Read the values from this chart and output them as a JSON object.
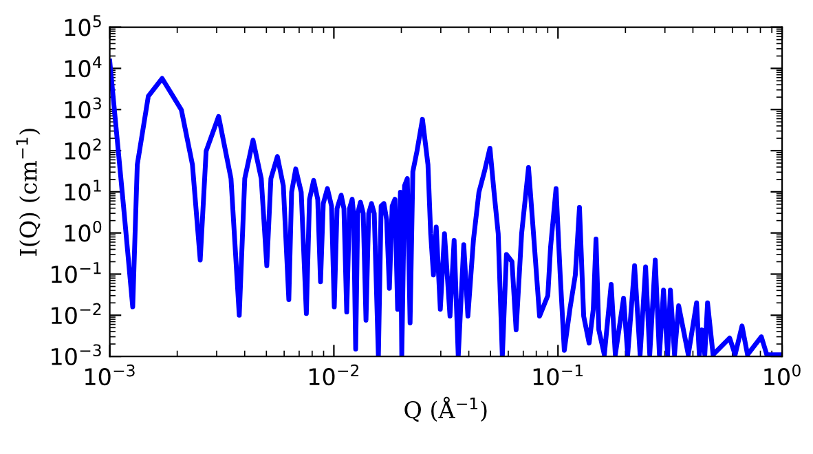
{
  "chart_data": {
    "type": "line",
    "xlabel": "Q (Å$^{−1}$)",
    "ylabel": "I(Q) (cm$^{−1}$)",
    "log": "xy",
    "grid": false,
    "marker": "none",
    "line_style": "solid",
    "xlim": [
      0.001,
      1
    ],
    "ylim": [
      0.001,
      100000
    ],
    "xticks": [
      {
        "value": 0.001,
        "label": "10$^{−3}$"
      },
      {
        "value": 0.01,
        "label": "10$^{−2}$"
      },
      {
        "value": 0.1,
        "label": "10$^{−1}$"
      },
      {
        "value": 1,
        "label": "10$^{0}$"
      }
    ],
    "yticks": [
      {
        "value": 0.001,
        "label": "10$^{−3}$"
      },
      {
        "value": 0.01,
        "label": "10$^{−2}$"
      },
      {
        "value": 0.1,
        "label": "10$^{−1}$"
      },
      {
        "value": 1,
        "label": "10$^{0}$"
      },
      {
        "value": 10,
        "label": "10$^{1}$"
      },
      {
        "value": 100,
        "label": "10$^{2}$"
      },
      {
        "value": 1000,
        "label": "10$^{3}$"
      },
      {
        "value": 10000,
        "label": "10$^{4}$"
      },
      {
        "value": 100000,
        "label": "10$^{5}$"
      }
    ],
    "series": [
      {
        "color": "#0000ff",
        "x": [
          0.001,
          0.001152,
          0.001266,
          0.001327,
          0.001486,
          0.001712,
          0.002087,
          0.002338,
          0.002533,
          0.002692,
          0.00306,
          0.003475,
          0.003783,
          0.004003,
          0.004358,
          0.004742,
          0.00502,
          0.005236,
          0.005598,
          0.00595,
          0.006295,
          0.006477,
          0.006757,
          0.00715,
          0.007537,
          0.007786,
          0.008123,
          0.008472,
          0.008718,
          0.008969,
          0.009357,
          0.009763,
          0.010042,
          0.01033,
          0.01078,
          0.01109,
          0.01141,
          0.01174,
          0.01207,
          0.01224,
          0.01251,
          0.01278,
          0.01314,
          0.01352,
          0.01391,
          0.0143,
          0.01472,
          0.01514,
          0.0158,
          0.01625,
          0.01672,
          0.0172,
          0.01769,
          0.0182,
          0.01873,
          0.01925,
          0.01981,
          0.02009,
          0.02067,
          0.02127,
          0.02188,
          0.02251,
          0.02349,
          0.02485,
          0.02629,
          0.02704,
          0.02782,
          0.02862,
          0.02985,
          0.03116,
          0.03297,
          0.0344,
          0.03589,
          0.03798,
          0.03963,
          0.04194,
          0.04438,
          0.04696,
          0.0497,
          0.05185,
          0.05411,
          0.05645,
          0.05889,
          0.06233,
          0.06504,
          0.06882,
          0.07388,
          0.07816,
          0.08274,
          0.09007,
          0.09266,
          0.09803,
          0.1023,
          0.1067,
          0.113,
          0.1195,
          0.1247,
          0.1302,
          0.1377,
          0.1437,
          0.1478,
          0.1521,
          0.161,
          0.1727,
          0.1802,
          0.1962,
          0.2047,
          0.2197,
          0.2325,
          0.246,
          0.2567,
          0.2716,
          0.2835,
          0.2957,
          0.3085,
          0.3173,
          0.3311,
          0.3455,
          0.3814,
          0.4153,
          0.4272,
          0.4395,
          0.4519,
          0.4649,
          0.492,
          0.5833,
          0.6172,
          0.6625,
          0.701,
          0.8076,
          0.8546,
          1.0
        ],
        "values": [
          15000,
          4.5,
          0.016,
          46,
          2100,
          5700,
          980,
          46,
          0.22,
          98,
          680,
          21,
          0.01,
          21,
          180,
          21,
          0.16,
          21,
          72,
          14,
          0.024,
          9.8,
          36,
          9.8,
          0.011,
          6.6,
          19,
          6.6,
          0.065,
          5.2,
          12,
          4.5,
          0.016,
          3.9,
          8.3,
          3.9,
          0.012,
          3.9,
          6.6,
          3.0,
          0.0015,
          3.0,
          5.6,
          3.0,
          0.0076,
          3.0,
          5.2,
          3.0,
          0.001,
          4.5,
          5.2,
          2.1,
          0.045,
          4.5,
          6.6,
          0.014,
          9.8,
          0.001,
          14,
          21,
          0.0065,
          31,
          98,
          580,
          46,
          0.96,
          0.095,
          1.4,
          0.014,
          0.96,
          0.0095,
          0.66,
          0.001,
          0.52,
          0.0095,
          0.66,
          9.8,
          31,
          115,
          9.8,
          0.96,
          0.001,
          0.3,
          0.2,
          0.0044,
          0.96,
          39,
          0.66,
          0.0095,
          0.03,
          0.45,
          12,
          0.095,
          0.0014,
          0.014,
          0.095,
          4.2,
          0.0095,
          0.0021,
          0.014,
          0.71,
          0.0044,
          0.0011,
          0.056,
          0.0011,
          0.026,
          0.0011,
          0.16,
          0.0011,
          0.15,
          0.0011,
          0.22,
          0.0011,
          0.041,
          0.0011,
          0.041,
          0.0011,
          0.017,
          0.0011,
          0.02,
          0.0011,
          0.0044,
          0.0011,
          0.02,
          0.0011,
          0.0028,
          0.0011,
          0.0055,
          0.0011,
          0.003,
          0.0011,
          0.0011
        ]
      }
    ]
  }
}
